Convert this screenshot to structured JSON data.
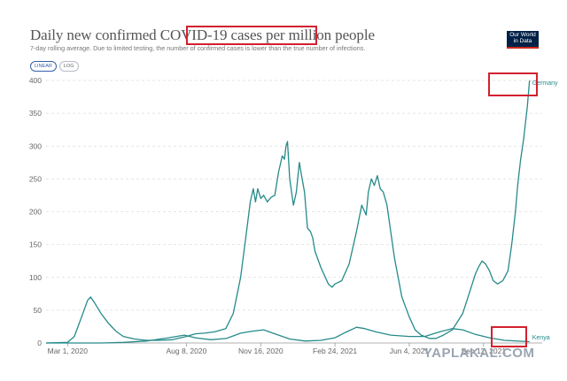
{
  "header": {
    "title": "Daily new confirmed COVID-19 cases per million people",
    "subtitle": "7-day rolling average. Due to limited testing, the number of confirmed cases is lower than the true number of infections.",
    "scale_linear": "LINEAR",
    "scale_log": "LOG",
    "logo_line1": "Our World",
    "logo_line2": "in Data"
  },
  "watermark": "YAPLAKAL.COM",
  "colors": {
    "line": "#268a8a",
    "grid": "#dddddd",
    "axis": "#999999",
    "annotation": "#d3202f",
    "logo_bg": "#002147",
    "logo_accent": "#ce261e"
  },
  "chart_data": {
    "type": "line",
    "title": "Daily new confirmed COVID-19 cases per million people",
    "x_type": "date",
    "xlim": [
      "2020-02-01",
      "2021-11-30"
    ],
    "ylim": [
      0,
      400
    ],
    "yticks": [
      0,
      50,
      100,
      150,
      200,
      250,
      300,
      350,
      400
    ],
    "xticks": [
      "2020-03-01",
      "2020-08-08",
      "2020-11-16",
      "2021-02-24",
      "2021-06-04",
      "2021-09-12"
    ],
    "xtick_labels": [
      "Mar 1, 2020",
      "Aug 8, 2020",
      "Nov 16, 2020",
      "Feb 24, 2021",
      "Jun 4, 2021",
      "Sep 12, 2021"
    ],
    "grid": "horizontal dashed",
    "series": [
      {
        "name": "Germany",
        "points": [
          [
            "2020-02-01",
            0
          ],
          [
            "2020-03-01",
            1
          ],
          [
            "2020-03-10",
            10
          ],
          [
            "2020-03-20",
            40
          ],
          [
            "2020-03-28",
            65
          ],
          [
            "2020-04-01",
            70
          ],
          [
            "2020-04-07",
            60
          ],
          [
            "2020-04-15",
            45
          ],
          [
            "2020-04-25",
            30
          ],
          [
            "2020-05-05",
            18
          ],
          [
            "2020-05-15",
            10
          ],
          [
            "2020-05-30",
            6
          ],
          [
            "2020-06-15",
            4
          ],
          [
            "2020-07-01",
            4
          ],
          [
            "2020-07-20",
            5
          ],
          [
            "2020-08-08",
            10
          ],
          [
            "2020-08-20",
            14
          ],
          [
            "2020-09-01",
            15
          ],
          [
            "2020-09-15",
            17
          ],
          [
            "2020-09-30",
            22
          ],
          [
            "2020-10-10",
            45
          ],
          [
            "2020-10-20",
            100
          ],
          [
            "2020-10-28",
            170
          ],
          [
            "2020-11-02",
            215
          ],
          [
            "2020-11-06",
            235
          ],
          [
            "2020-11-09",
            215
          ],
          [
            "2020-11-12",
            235
          ],
          [
            "2020-11-16",
            220
          ],
          [
            "2020-11-20",
            225
          ],
          [
            "2020-11-25",
            215
          ],
          [
            "2020-11-30",
            222
          ],
          [
            "2020-12-05",
            225
          ],
          [
            "2020-12-10",
            260
          ],
          [
            "2020-12-15",
            285
          ],
          [
            "2020-12-18",
            280
          ],
          [
            "2020-12-20",
            300
          ],
          [
            "2020-12-22",
            307
          ],
          [
            "2020-12-25",
            250
          ],
          [
            "2020-12-30",
            210
          ],
          [
            "2021-01-03",
            230
          ],
          [
            "2021-01-07",
            275
          ],
          [
            "2021-01-10",
            255
          ],
          [
            "2021-01-14",
            230
          ],
          [
            "2021-01-18",
            175
          ],
          [
            "2021-01-22",
            170
          ],
          [
            "2021-01-25",
            160
          ],
          [
            "2021-01-28",
            140
          ],
          [
            "2021-02-05",
            115
          ],
          [
            "2021-02-15",
            90
          ],
          [
            "2021-02-20",
            85
          ],
          [
            "2021-02-24",
            90
          ],
          [
            "2021-03-05",
            95
          ],
          [
            "2021-03-15",
            120
          ],
          [
            "2021-03-25",
            170
          ],
          [
            "2021-04-01",
            210
          ],
          [
            "2021-04-07",
            195
          ],
          [
            "2021-04-10",
            230
          ],
          [
            "2021-04-14",
            250
          ],
          [
            "2021-04-18",
            240
          ],
          [
            "2021-04-22",
            255
          ],
          [
            "2021-04-26",
            235
          ],
          [
            "2021-04-30",
            230
          ],
          [
            "2021-05-05",
            210
          ],
          [
            "2021-05-10",
            170
          ],
          [
            "2021-05-15",
            130
          ],
          [
            "2021-05-20",
            100
          ],
          [
            "2021-05-25",
            70
          ],
          [
            "2021-06-04",
            40
          ],
          [
            "2021-06-12",
            20
          ],
          [
            "2021-06-20",
            12
          ],
          [
            "2021-07-01",
            7
          ],
          [
            "2021-07-10",
            7
          ],
          [
            "2021-07-20",
            12
          ],
          [
            "2021-08-01",
            20
          ],
          [
            "2021-08-15",
            45
          ],
          [
            "2021-08-25",
            80
          ],
          [
            "2021-09-01",
            105
          ],
          [
            "2021-09-05",
            115
          ],
          [
            "2021-09-10",
            125
          ],
          [
            "2021-09-15",
            120
          ],
          [
            "2021-09-20",
            110
          ],
          [
            "2021-09-25",
            95
          ],
          [
            "2021-10-01",
            90
          ],
          [
            "2021-10-08",
            95
          ],
          [
            "2021-10-15",
            110
          ],
          [
            "2021-10-20",
            150
          ],
          [
            "2021-10-25",
            200
          ],
          [
            "2021-10-28",
            240
          ],
          [
            "2021-11-01",
            280
          ],
          [
            "2021-11-05",
            310
          ],
          [
            "2021-11-10",
            360
          ],
          [
            "2021-11-13",
            400
          ]
        ]
      },
      {
        "name": "Kenya",
        "points": [
          [
            "2020-02-01",
            0
          ],
          [
            "2020-03-01",
            0
          ],
          [
            "2020-04-15",
            0
          ],
          [
            "2020-05-15",
            1
          ],
          [
            "2020-06-15",
            3
          ],
          [
            "2020-07-15",
            8
          ],
          [
            "2020-08-05",
            12
          ],
          [
            "2020-08-20",
            8
          ],
          [
            "2020-09-10",
            5
          ],
          [
            "2020-10-01",
            7
          ],
          [
            "2020-10-20",
            15
          ],
          [
            "2020-11-05",
            18
          ],
          [
            "2020-11-20",
            20
          ],
          [
            "2020-12-05",
            14
          ],
          [
            "2020-12-25",
            6
          ],
          [
            "2021-01-15",
            3
          ],
          [
            "2021-02-05",
            4
          ],
          [
            "2021-02-24",
            8
          ],
          [
            "2021-03-10",
            16
          ],
          [
            "2021-03-25",
            24
          ],
          [
            "2021-04-05",
            22
          ],
          [
            "2021-04-20",
            17
          ],
          [
            "2021-05-10",
            12
          ],
          [
            "2021-06-04",
            10
          ],
          [
            "2021-06-25",
            10
          ],
          [
            "2021-07-15",
            17
          ],
          [
            "2021-08-01",
            22
          ],
          [
            "2021-08-15",
            20
          ],
          [
            "2021-09-01",
            13
          ],
          [
            "2021-09-20",
            8
          ],
          [
            "2021-10-10",
            4
          ],
          [
            "2021-11-13",
            2
          ]
        ]
      }
    ]
  },
  "annotations": [
    {
      "target": "title cases per million people"
    },
    {
      "target": "Germany"
    },
    {
      "target": "Kenya"
    }
  ]
}
